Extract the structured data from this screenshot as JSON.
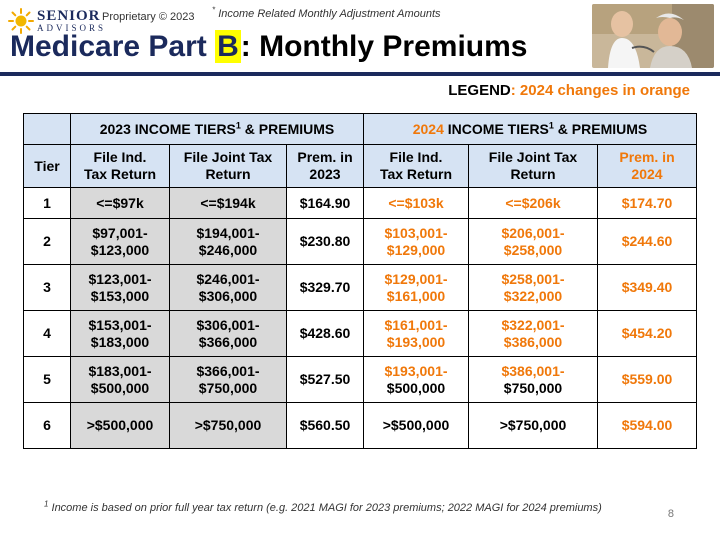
{
  "brand": {
    "name_top": "SENIOR",
    "name_bottom": "ADVISORS"
  },
  "proprietary": "Proprietary © 2023",
  "top_note": {
    "mark": "*",
    "text": "Income Related Monthly Adjustment Amounts"
  },
  "title": {
    "part1": "Medicare Part ",
    "highlight": "B",
    "part2": ": Monthly Premiums"
  },
  "legend": {
    "label": "LEGEND",
    "text": ": 2024 changes in orange"
  },
  "colors": {
    "navy": "#1b2a5c",
    "orange": "#f0780a",
    "header_blue": "#d6e3f3",
    "gray": "#d9d9d9",
    "highlight": "#ffff00"
  },
  "table": {
    "group_2023": {
      "text": "2023 INCOME TIERS",
      "sup": "1",
      "tail": " & PREMIUMS"
    },
    "group_2024": {
      "year": "2024",
      "text": " INCOME TIERS",
      "sup": "1",
      "tail": " & PREMIUMS"
    },
    "col_tier": "Tier",
    "col_ind": [
      "File Ind.",
      "Tax Return"
    ],
    "col_joint": [
      "File Joint Tax",
      "Return"
    ],
    "col_prem_2023": [
      "Prem. in",
      "2023"
    ],
    "col_prem_2024": [
      "Prem. in",
      "2024"
    ],
    "rows": [
      {
        "tier": "1",
        "ind_2023": [
          "<=$97k"
        ],
        "joint_2023": [
          "<=$194k"
        ],
        "prem_2023": "$164.90",
        "ind_2024": [
          "<=$103k"
        ],
        "joint_2024": [
          "<=$206k"
        ],
        "prem_2024": "$174.70"
      },
      {
        "tier": "2",
        "ind_2023": [
          "$97,001-",
          "$123,000"
        ],
        "joint_2023": [
          "$194,001-",
          "$246,000"
        ],
        "prem_2023": "$230.80",
        "ind_2024": [
          "$103,001-",
          "$129,000"
        ],
        "joint_2024": [
          "$206,001-",
          "$258,000"
        ],
        "prem_2024": "$244.60"
      },
      {
        "tier": "3",
        "ind_2023": [
          "$123,001-",
          "$153,000"
        ],
        "joint_2023": [
          "$246,001-",
          "$306,000"
        ],
        "prem_2023": "$329.70",
        "ind_2024": [
          "$129,001-",
          "$161,000"
        ],
        "joint_2024": [
          "$258,001-",
          "$322,000"
        ],
        "prem_2024": "$349.40"
      },
      {
        "tier": "4",
        "ind_2023": [
          "$153,001-",
          "$183,000"
        ],
        "joint_2023": [
          "$306,001-",
          "$366,000"
        ],
        "prem_2023": "$428.60",
        "ind_2024": [
          "$161,001-",
          "$193,000"
        ],
        "joint_2024": [
          "$322,001-",
          "$386,000"
        ],
        "prem_2024": "$454.20"
      },
      {
        "tier": "5",
        "ind_2023": [
          "$183,001-",
          "$500,000"
        ],
        "joint_2023": [
          "$366,001-",
          "$750,000"
        ],
        "prem_2023": "$527.50",
        "ind_2024": [
          "$193,001-",
          "$500,000"
        ],
        "joint_2024": [
          "$386,001-",
          "$750,000"
        ],
        "prem_2024": "$559.00"
      },
      {
        "tier": "6",
        "ind_2023": [
          ">$500,000"
        ],
        "joint_2023": [
          ">$750,000"
        ],
        "prem_2023": "$560.50",
        "ind_2024": [
          ">$500,000"
        ],
        "joint_2024": [
          ">$750,000"
        ],
        "prem_2024": "$594.00"
      }
    ]
  },
  "footnote": {
    "mark": "1",
    "text": " Income is based on prior full year tax return (e.g. 2021 MAGI for 2023 premiums; 2022 MAGI for 2024 premiums)"
  },
  "page_number": "8"
}
